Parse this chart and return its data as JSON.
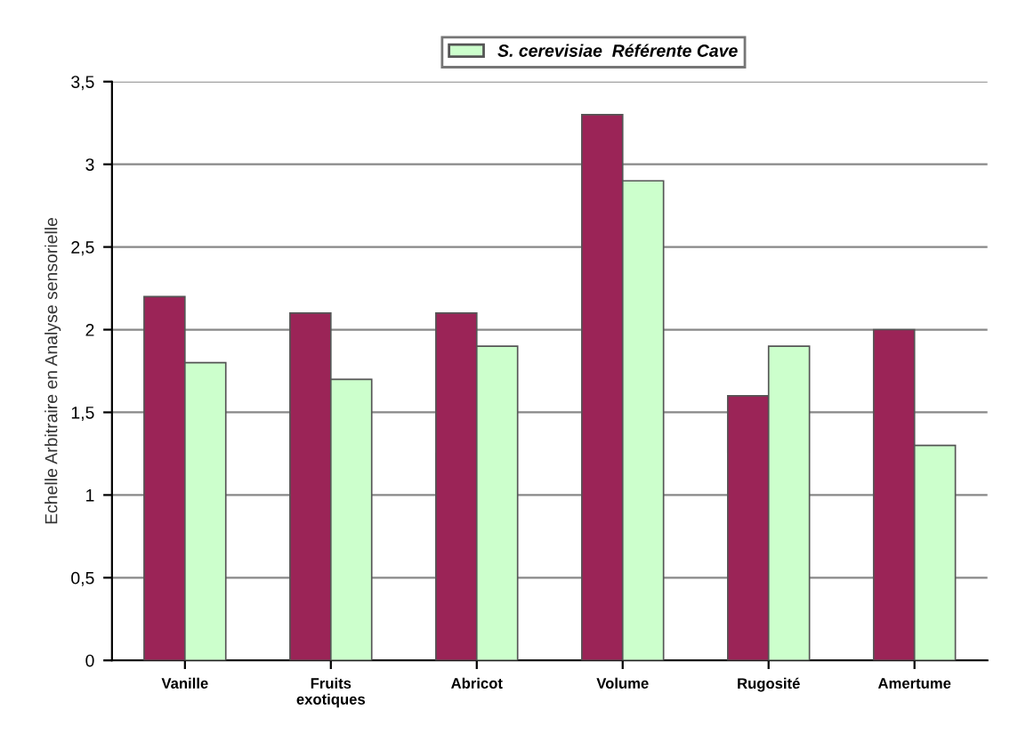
{
  "chart_data": {
    "type": "bar",
    "ylabel": "Echelle Arbitraire en Analyse sensorielle",
    "categories": [
      "Vanille",
      "Fruits\nexotiques",
      "Abricot",
      "Volume",
      "Rugosité",
      "Amertume"
    ],
    "series": [
      {
        "color": "#9b2457",
        "values": [
          2.2,
          2.1,
          2.1,
          3.3,
          1.6,
          2.0
        ]
      },
      {
        "name": "S. cerevisiae  Référente Cave",
        "color": "#ccffcc",
        "values": [
          1.8,
          1.7,
          1.9,
          2.9,
          1.9,
          1.3
        ]
      }
    ],
    "ylim": [
      0,
      3.5
    ],
    "yticks": [
      0,
      {
        "value": 0.5,
        "label": "0,5"
      },
      1,
      {
        "value": 1.5,
        "label": "1,5"
      },
      2,
      {
        "value": 2.5,
        "label": "2,5"
      },
      3,
      {
        "value": 3.5,
        "label": "3,5"
      }
    ],
    "grid": "y",
    "legend": "top"
  }
}
